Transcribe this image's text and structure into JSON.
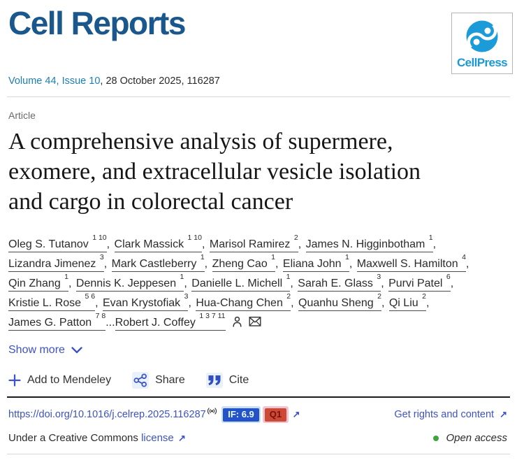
{
  "header": {
    "journal_title": "Cell Reports",
    "publisher_name": "CellPress",
    "volume_link": "Volume 44, Issue 10",
    "issue_suffix": ", 28 October 2025, 116287"
  },
  "article": {
    "type_label": "Article",
    "title": "A comprehensive analysis of supermere, exomere, and extracellular vesicle isolation and cargo in colorectal cancer",
    "title_lines": [
      "A comprehensive analysis of supermere,",
      "exomere, and extracellular vesicle isolation",
      "and cargo in colorectal cancer"
    ],
    "show_more_label": "Show more"
  },
  "authors": [
    {
      "name": "Oleg S. Tutanov",
      "sup": "1 10",
      "sep": ", "
    },
    {
      "name": "Clark Massick",
      "sup": "1 10",
      "sep": ", "
    },
    {
      "name": "Marisol Ramirez",
      "sup": "2",
      "sep": ", "
    },
    {
      "name": "James N. Higginbotham",
      "sup": "1",
      "sep": ", "
    },
    {
      "name": "Lizandra Jimenez",
      "sup": "3",
      "sep": ", "
    },
    {
      "name": "Mark Castleberry",
      "sup": "1",
      "sep": ", "
    },
    {
      "name": "Zheng Cao",
      "sup": "1",
      "sep": ", "
    },
    {
      "name": "Eliana John",
      "sup": "1",
      "sep": ", "
    },
    {
      "name": "Maxwell S. Hamilton",
      "sup": "4",
      "sep": ", "
    },
    {
      "name": "Qin Zhang",
      "sup": "1",
      "sep": ", "
    },
    {
      "name": "Dennis K. Jeppesen",
      "sup": "1",
      "sep": ", "
    },
    {
      "name": "Danielle L. Michell",
      "sup": "1",
      "sep": ", "
    },
    {
      "name": "Sarah E. Glass",
      "sup": "3",
      "sep": ", "
    },
    {
      "name": "Purvi Patel",
      "sup": "6",
      "sep": ", "
    },
    {
      "name": "Kristie L. Rose",
      "sup": "5 6",
      "sep": ", "
    },
    {
      "name": "Evan Krystofiak",
      "sup": "3",
      "sep": ", "
    },
    {
      "name": "Hua-Chang Chen",
      "sup": "2",
      "sep": ", "
    },
    {
      "name": "Quanhu Sheng",
      "sup": "2",
      "sep": ", "
    },
    {
      "name": "Qi Liu",
      "sup": "2",
      "sep": ", "
    },
    {
      "name": "James G. Patton",
      "sup": "7 8",
      "sep": ""
    },
    {
      "name": "Robert J. Coffey",
      "sup": "1 3 7 11",
      "sep": "",
      "prefix": "..."
    }
  ],
  "actions": {
    "mendeley_label": "Add to Mendeley",
    "share_label": "Share",
    "cite_label": "Cite"
  },
  "doi_bar": {
    "doi_url": "https://doi.org/10.1016/j.celrep.2025.116287",
    "if_label": "IF: 6.9",
    "q1_label": "Q1",
    "rights_link": "Get rights and content",
    "license_prefix": "Under a Creative Commons ",
    "license_link": "license",
    "open_access_label": "Open access"
  },
  "icons": {
    "external_arrow": "↗",
    "chevron_down": "chevron-down",
    "plus": "plus",
    "share": "share-nodes",
    "cite": "double-quote",
    "person": "corresponding-author",
    "envelope": "email-envelope",
    "broadcast": "plumx-metrics",
    "open_access_dot": "green-dot"
  },
  "colors": {
    "journal_blue": "#1a578c",
    "cellpress_blue": "#1b9cd9",
    "volume_link_blue": "#1c7db5",
    "accent_indigo": "#3c52c8",
    "if_badge_bg": "#2453c9",
    "q1_badge_bg": "#cc4936",
    "q1_badge_text": "#76100e",
    "open_access_green": "#3da53c",
    "text_dark": "#2b2b2b"
  }
}
